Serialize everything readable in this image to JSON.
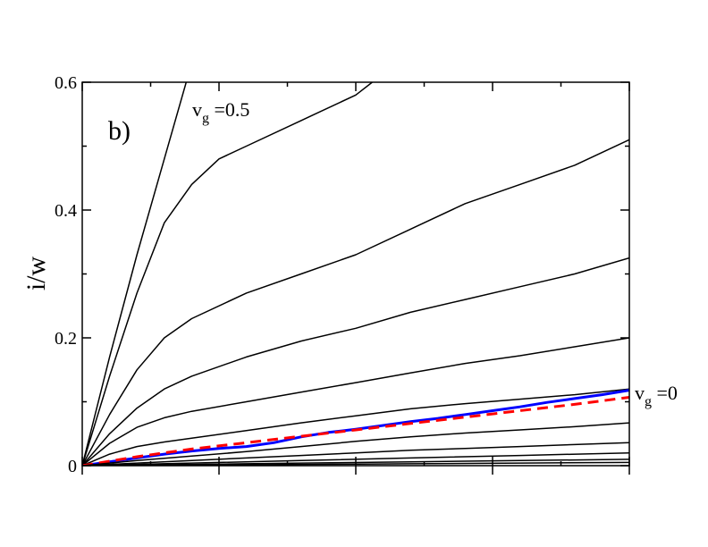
{
  "chart_data": {
    "type": "line",
    "panel_label": "b)",
    "ylabel": "i/w",
    "xlabel": "",
    "xlim": [
      0,
      1
    ],
    "ylim": [
      0,
      0.6
    ],
    "yticks": [
      {
        "value": 0,
        "label": "0"
      },
      {
        "value": 0.2,
        "label": "0.2"
      },
      {
        "value": 0.4,
        "label": "0.4"
      },
      {
        "value": 0.6,
        "label": "0.6"
      }
    ],
    "xticks_major": [
      0,
      0.25,
      0.5,
      0.75,
      1.0
    ],
    "xticks_minor": [
      0.125,
      0.375,
      0.625,
      0.875
    ],
    "annotations": [
      {
        "main": "v",
        "sub": "g",
        "rest": " =0.5"
      },
      {
        "main": "v",
        "sub": "g",
        "rest": " =0"
      }
    ],
    "series": [
      {
        "color": "#000000",
        "style": "solid",
        "x": [
          0,
          0.05,
          0.1,
          0.15,
          0.19
        ],
        "y": [
          0,
          0.17,
          0.33,
          0.48,
          0.6
        ]
      },
      {
        "color": "#000000",
        "style": "solid",
        "x": [
          0,
          0.05,
          0.1,
          0.15,
          0.2,
          0.25,
          0.3,
          0.4,
          0.5,
          0.53
        ],
        "y": [
          0,
          0.14,
          0.27,
          0.38,
          0.44,
          0.48,
          0.5,
          0.54,
          0.58,
          0.6
        ]
      },
      {
        "color": "#000000",
        "style": "solid",
        "x": [
          0,
          0.05,
          0.1,
          0.15,
          0.2,
          0.3,
          0.4,
          0.5,
          0.6,
          0.7,
          0.8,
          0.9,
          1.0
        ],
        "y": [
          0,
          0.08,
          0.15,
          0.2,
          0.23,
          0.27,
          0.3,
          0.33,
          0.37,
          0.41,
          0.44,
          0.47,
          0.51
        ]
      },
      {
        "color": "#000000",
        "style": "solid",
        "x": [
          0,
          0.05,
          0.1,
          0.15,
          0.2,
          0.3,
          0.4,
          0.5,
          0.6,
          0.7,
          0.8,
          0.9,
          1.0
        ],
        "y": [
          0,
          0.05,
          0.09,
          0.12,
          0.14,
          0.17,
          0.195,
          0.215,
          0.24,
          0.26,
          0.28,
          0.3,
          0.325
        ]
      },
      {
        "color": "#000000",
        "style": "solid",
        "x": [
          0,
          0.05,
          0.1,
          0.15,
          0.2,
          0.3,
          0.4,
          0.5,
          0.6,
          0.7,
          0.8,
          0.9,
          1.0
        ],
        "y": [
          0,
          0.035,
          0.06,
          0.075,
          0.085,
          0.1,
          0.115,
          0.13,
          0.145,
          0.16,
          0.172,
          0.186,
          0.2
        ]
      },
      {
        "color": "#000000",
        "style": "solid",
        "x": [
          0,
          0.05,
          0.1,
          0.15,
          0.2,
          0.3,
          0.4,
          0.5,
          0.6,
          0.7,
          0.8,
          0.9,
          1.0
        ],
        "y": [
          0,
          0.018,
          0.03,
          0.037,
          0.043,
          0.055,
          0.067,
          0.078,
          0.089,
          0.097,
          0.104,
          0.111,
          0.12
        ]
      },
      {
        "color": "#0000ff",
        "style": "solid",
        "width": 3,
        "x": [
          0,
          0.05,
          0.1,
          0.15,
          0.2,
          0.25,
          0.3,
          0.35,
          0.4,
          0.45,
          0.5,
          0.55,
          0.6,
          0.65,
          0.7,
          0.75,
          0.8,
          0.85,
          0.9,
          0.95,
          1.0
        ],
        "y": [
          0,
          0.006,
          0.012,
          0.018,
          0.023,
          0.027,
          0.03,
          0.036,
          0.045,
          0.052,
          0.057,
          0.063,
          0.069,
          0.074,
          0.08,
          0.086,
          0.092,
          0.099,
          0.105,
          0.111,
          0.118
        ]
      },
      {
        "color": "#ff0000",
        "style": "dashed",
        "width": 3,
        "x": [
          0,
          0.1,
          0.2,
          0.3,
          0.4,
          0.5,
          0.6,
          0.7,
          0.8,
          0.9,
          1.0
        ],
        "y": [
          0,
          0.014,
          0.026,
          0.036,
          0.046,
          0.056,
          0.066,
          0.076,
          0.086,
          0.096,
          0.107
        ]
      },
      {
        "color": "#000000",
        "style": "solid",
        "x": [
          0,
          0.1,
          0.2,
          0.3,
          0.4,
          0.5,
          0.6,
          0.7,
          0.8,
          0.9,
          1.0
        ],
        "y": [
          0,
          0.008,
          0.015,
          0.022,
          0.03,
          0.038,
          0.045,
          0.051,
          0.056,
          0.061,
          0.067
        ]
      },
      {
        "color": "#000000",
        "style": "solid",
        "x": [
          0,
          0.1,
          0.2,
          0.3,
          0.4,
          0.5,
          0.6,
          0.7,
          0.8,
          0.9,
          1.0
        ],
        "y": [
          0,
          0.004,
          0.008,
          0.012,
          0.016,
          0.02,
          0.024,
          0.027,
          0.03,
          0.033,
          0.036
        ]
      },
      {
        "color": "#000000",
        "style": "solid",
        "x": [
          0,
          0.2,
          0.4,
          0.6,
          0.8,
          1.0
        ],
        "y": [
          0,
          0.004,
          0.008,
          0.012,
          0.016,
          0.02
        ]
      },
      {
        "color": "#000000",
        "style": "solid",
        "x": [
          0,
          0.2,
          0.4,
          0.6,
          0.8,
          1.0
        ],
        "y": [
          0,
          0.002,
          0.004,
          0.006,
          0.008,
          0.01
        ]
      },
      {
        "color": "#000000",
        "style": "solid",
        "x": [
          0,
          0.2,
          0.4,
          0.6,
          0.8,
          1.0
        ],
        "y": [
          0,
          0.001,
          0.002,
          0.003,
          0.004,
          0.005
        ]
      }
    ]
  }
}
